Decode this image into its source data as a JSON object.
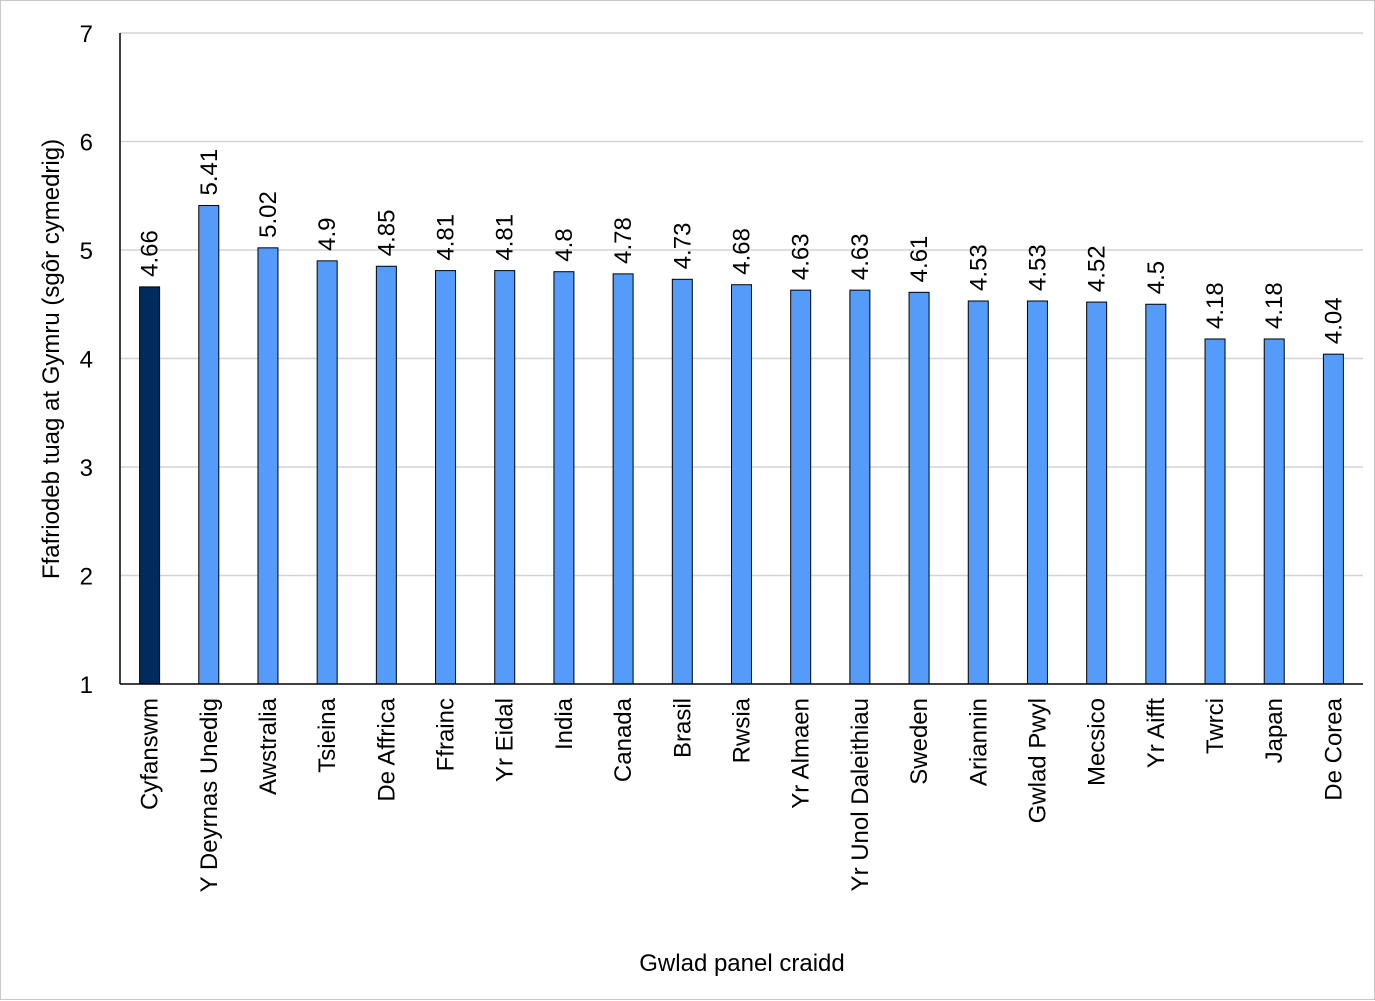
{
  "chart_data": {
    "type": "bar",
    "xlabel": "Gwlad panel craidd",
    "ylabel": "Ffafriodeb tuag at Gymru (sgôr cymedrig)",
    "ylim": [
      1,
      7
    ],
    "yticks": [
      1,
      2,
      3,
      4,
      5,
      6,
      7
    ],
    "grid": true,
    "categories": [
      "Cyfanswm",
      "Y Deyrnas Unedig",
      "Awstralia",
      "Tsieina",
      "De Affrica",
      "Ffrainc",
      "Yr Eidal",
      "India",
      "Canada",
      "Brasil",
      "Rwsia",
      "Yr Almaen",
      "Yr Unol Daleithiau",
      "Sweden",
      "Ariannin",
      "Gwlad Pwyl",
      "Mecsico",
      "Yr Aifft",
      "Twrci",
      "Japan",
      "De Corea"
    ],
    "values": [
      4.66,
      5.41,
      5.02,
      4.9,
      4.85,
      4.81,
      4.81,
      4.8,
      4.78,
      4.73,
      4.68,
      4.63,
      4.63,
      4.61,
      4.53,
      4.53,
      4.52,
      4.5,
      4.18,
      4.18,
      4.04
    ],
    "value_labels": [
      "4.66",
      "5.41",
      "5.02",
      "4.9",
      "4.85",
      "4.81",
      "4.81",
      "4.8",
      "4.78",
      "4.73",
      "4.68",
      "4.63",
      "4.63",
      "4.61",
      "4.53",
      "4.53",
      "4.52",
      "4.5",
      "4.18",
      "4.18",
      "4.04"
    ],
    "colors": {
      "highlight": "#002b5c",
      "bar": "#559cfa",
      "grid": "#d4d4d4",
      "axis": "#000000"
    },
    "highlight_category": "Cyfanswm"
  }
}
